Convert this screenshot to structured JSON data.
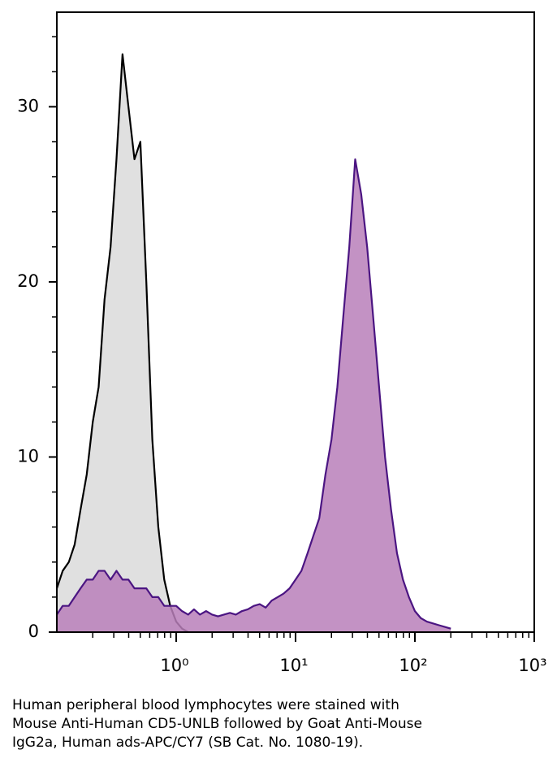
{
  "chart_data": {
    "type": "histogram-overlay",
    "xscale": "log",
    "xlim": [
      0.1,
      1000
    ],
    "xticks": [
      {
        "value": 1,
        "label": "10⁰"
      },
      {
        "value": 10,
        "label": "10¹"
      },
      {
        "value": 100,
        "label": "10²"
      },
      {
        "value": 1000,
        "label": "10³"
      }
    ],
    "xminorticks": [
      0.2,
      0.3,
      0.4,
      0.5,
      0.6,
      0.7,
      0.8,
      0.9,
      2,
      3,
      4,
      5,
      6,
      7,
      8,
      9,
      20,
      30,
      40,
      50,
      60,
      70,
      80,
      90,
      200,
      300,
      400,
      500,
      600,
      700,
      800,
      900
    ],
    "ylim": [
      0,
      35.4
    ],
    "yticks": [
      0,
      10,
      20,
      30
    ],
    "yminorticks": [
      2,
      4,
      6,
      8,
      12,
      14,
      16,
      18,
      22,
      24,
      26,
      28,
      32,
      34
    ],
    "x": [
      0.1,
      0.112,
      0.126,
      0.141,
      0.158,
      0.178,
      0.2,
      0.224,
      0.251,
      0.282,
      0.316,
      0.355,
      0.398,
      0.447,
      0.501,
      0.562,
      0.631,
      0.708,
      0.794,
      0.891,
      1,
      1.12,
      1.26,
      1.41,
      1.58,
      1.78,
      2,
      2.24,
      2.51,
      2.82,
      3.16,
      3.55,
      3.98,
      4.47,
      5.01,
      5.62,
      6.31,
      7.08,
      7.94,
      8.91,
      10,
      11.2,
      12.6,
      14.1,
      15.8,
      17.8,
      20,
      22.4,
      25.1,
      28.2,
      31.6,
      35.5,
      39.8,
      44.7,
      50.1,
      56.2,
      63.1,
      70.8,
      79.4,
      89.1,
      100,
      112,
      126,
      141,
      158,
      178,
      200
    ],
    "series": [
      {
        "color": "#000000",
        "fill": "#e0e0e0",
        "values": [
          2.5,
          3.5,
          4,
          5,
          7,
          9,
          12,
          14,
          19,
          22,
          27,
          33,
          30,
          27,
          28,
          20,
          11,
          6,
          3,
          1.5,
          0.6,
          0.2,
          0,
          null,
          null,
          null,
          null,
          null,
          null,
          null,
          null,
          null,
          null,
          null,
          null,
          null,
          null,
          null,
          null,
          null,
          null,
          null,
          null,
          null,
          null,
          null,
          null,
          null,
          null,
          null,
          null,
          null,
          null,
          null,
          null,
          null,
          null,
          null,
          null,
          null,
          null,
          null,
          null,
          null,
          null,
          null,
          null
        ]
      },
      {
        "color": "#4b1582",
        "fill": "#b87fba",
        "values": [
          1,
          1.5,
          1.5,
          2,
          2.5,
          3,
          3,
          3.5,
          3.5,
          3,
          3.5,
          3,
          3,
          2.5,
          2.5,
          2.5,
          2,
          2,
          1.5,
          1.5,
          1.5,
          1.2,
          1,
          1.3,
          1,
          1.2,
          1,
          0.9,
          1,
          1.1,
          1,
          1.2,
          1.3,
          1.5,
          1.6,
          1.4,
          1.8,
          2,
          2.2,
          2.5,
          3,
          3.5,
          4.5,
          5.5,
          6.5,
          9,
          11,
          14,
          18,
          22,
          27,
          25,
          22,
          18,
          14,
          10,
          7,
          4.5,
          3,
          2,
          1.2,
          0.8,
          0.6,
          0.5,
          0.4,
          0.3,
          0.2
        ]
      }
    ]
  },
  "caption": [
    "Human peripheral blood lymphocytes were stained with",
    "Mouse Anti-Human CD5-UNLB followed by Goat Anti-Mouse",
    "IgG2a, Human ads-APC/CY7 (SB Cat. No. 1080-19)."
  ]
}
